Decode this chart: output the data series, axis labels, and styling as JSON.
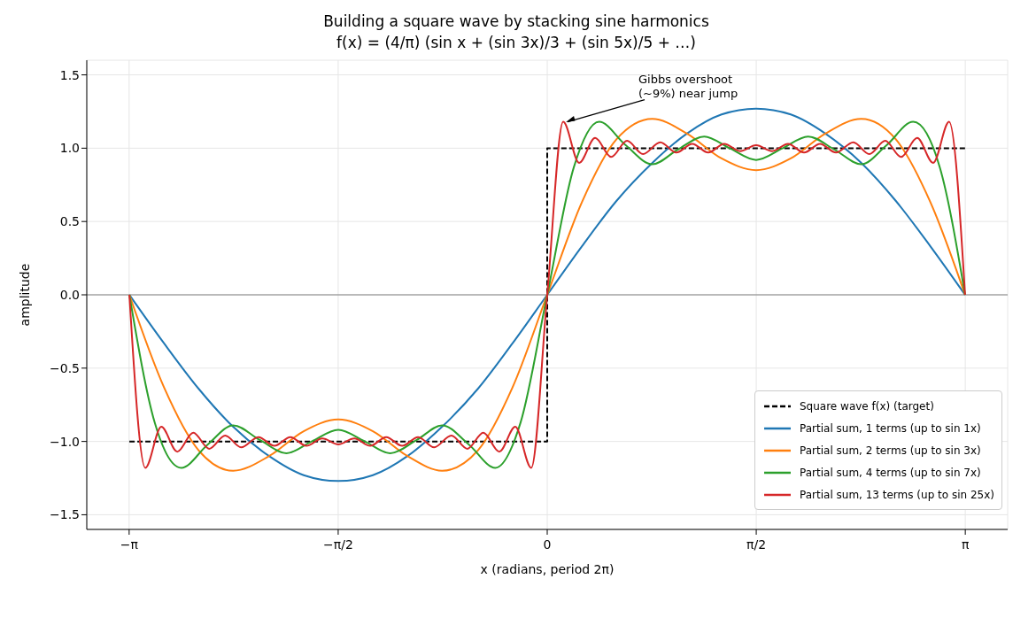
{
  "chart_data": {
    "type": "line",
    "title": "Building a square wave by stacking sine harmonics",
    "subtitle": "f(x) = (4/π) (sin x + (sin 3x)/3 + (sin 5x)/5 + …)",
    "xlabel": "x  (radians, period 2π)",
    "ylabel": "amplitude",
    "xlim": [
      -3.46,
      3.46
    ],
    "xticks": [
      {
        "value": -3.1416,
        "label": "−π"
      },
      {
        "value": -1.5708,
        "label": "−π/2"
      },
      0,
      {
        "value": 1.5708,
        "label": "π/2"
      },
      {
        "value": 3.1416,
        "label": "π"
      }
    ],
    "ylim": [
      -1.6,
      1.6
    ],
    "yticks": [
      {
        "value": -1.5,
        "label": "−1.5"
      },
      {
        "value": -1.0,
        "label": "−1.0"
      },
      {
        "value": -0.5,
        "label": "−0.5"
      },
      {
        "value": 0,
        "label": "0.0"
      },
      {
        "value": 0.5,
        "label": "0.5"
      },
      {
        "value": 1.0,
        "label": "1.0"
      },
      {
        "value": 1.5,
        "label": "1.5"
      }
    ],
    "grid": true,
    "legend": "bottom right",
    "marker": "none",
    "ref_lines": [
      {
        "axis": "y",
        "value": 0,
        "color": "#808080"
      }
    ],
    "annotations": [
      {
        "text": "Gibbs overshoot\n(~9%) near jump",
        "x": 0.12,
        "y": 1.18
      }
    ],
    "series": [
      {
        "name": "Square wave f(x) (target)",
        "color": "#000000",
        "line_style": "dashed",
        "x": [
          -3.14,
          0,
          0,
          3.14
        ],
        "values": [
          -1,
          -1,
          1,
          1
        ]
      },
      {
        "name": "Partial sum, 1 terms (up to sin 1x)",
        "color": "#1f77b4",
        "x": [
          -3.14,
          -2.88,
          -2.62,
          -2.36,
          -2.09,
          -1.83,
          -1.57,
          -1.31,
          -1.05,
          -0.79,
          -0.52,
          -0.26,
          0,
          0.26,
          0.52,
          0.79,
          1.05,
          1.31,
          1.57,
          1.83,
          2.09,
          2.36,
          2.62,
          2.88,
          3.14
        ],
        "values": [
          0,
          -0.33,
          -0.64,
          -0.9,
          -1.1,
          -1.23,
          -1.27,
          -1.23,
          -1.1,
          -0.9,
          -0.64,
          -0.33,
          0,
          0.33,
          0.64,
          0.9,
          1.1,
          1.23,
          1.27,
          1.23,
          1.1,
          0.9,
          0.64,
          0.33,
          0
        ]
      },
      {
        "name": "Partial sum, 2 terms (up to sin 3x)",
        "color": "#ff7f0e",
        "x": [
          -3.14,
          -2.88,
          -2.62,
          -2.36,
          -2.09,
          -1.83,
          -1.57,
          -1.31,
          -1.05,
          -0.79,
          -0.52,
          -0.26,
          0,
          0.26,
          0.52,
          0.79,
          1.05,
          1.31,
          1.57,
          1.83,
          2.09,
          2.36,
          2.62,
          2.88,
          3.14
        ],
        "values": [
          0,
          -0.63,
          -1.06,
          -1.2,
          -1.1,
          -0.93,
          -0.85,
          -0.93,
          -1.1,
          -1.2,
          -1.06,
          -0.63,
          0,
          0.63,
          1.06,
          1.2,
          1.1,
          0.93,
          0.85,
          0.93,
          1.1,
          1.2,
          1.06,
          0.63,
          0
        ]
      },
      {
        "name": "Partial sum, 4 terms (up to sin 7x)",
        "color": "#2ca02c",
        "x": [
          -3.14,
          -2.95,
          -2.75,
          -2.55,
          -2.36,
          -2.16,
          -1.96,
          -1.77,
          -1.57,
          -1.37,
          -1.18,
          -0.98,
          -0.79,
          -0.59,
          -0.39,
          -0.2,
          0,
          0.2,
          0.39,
          0.59,
          0.79,
          0.98,
          1.18,
          1.37,
          1.57,
          1.77,
          1.96,
          2.16,
          2.36,
          2.55,
          2.75,
          2.95,
          3.14
        ],
        "values": [
          0,
          -0.87,
          -1.18,
          -1.02,
          -0.89,
          -0.99,
          -1.08,
          -1.0,
          -0.92,
          -1.0,
          -1.08,
          -0.99,
          -0.89,
          -1.02,
          -1.18,
          -0.87,
          0,
          0.87,
          1.18,
          1.02,
          0.89,
          0.99,
          1.08,
          1.0,
          0.92,
          1.0,
          1.08,
          0.99,
          0.89,
          1.02,
          1.18,
          0.87,
          0
        ]
      },
      {
        "name": "Partial sum, 13 terms (up to sin 25x)",
        "color": "#d62728",
        "x": [
          -3.14,
          -3.02,
          -2.9,
          -2.78,
          -2.66,
          -2.54,
          -2.42,
          -2.3,
          -2.17,
          -2.05,
          -1.93,
          -1.81,
          -1.69,
          -1.57,
          -1.45,
          -1.33,
          -1.21,
          -1.09,
          -0.97,
          -0.85,
          -0.72,
          -0.6,
          -0.48,
          -0.36,
          -0.24,
          -0.12,
          0,
          0.12,
          0.24,
          0.36,
          0.48,
          0.6,
          0.72,
          0.85,
          0.97,
          1.09,
          1.21,
          1.33,
          1.45,
          1.57,
          1.69,
          1.81,
          1.93,
          2.05,
          2.17,
          2.3,
          2.42,
          2.54,
          2.66,
          2.78,
          2.9,
          3.02,
          3.14
        ],
        "values": [
          0,
          -1.18,
          -0.9,
          -1.07,
          -0.94,
          -1.05,
          -0.96,
          -1.04,
          -0.97,
          -1.03,
          -0.97,
          -1.03,
          -0.98,
          -1.02,
          -0.98,
          -1.03,
          -0.97,
          -1.03,
          -0.97,
          -1.04,
          -0.96,
          -1.05,
          -0.94,
          -1.07,
          -0.9,
          -1.18,
          0,
          1.18,
          0.9,
          1.07,
          0.94,
          1.05,
          0.96,
          1.04,
          0.97,
          1.03,
          0.97,
          1.03,
          0.98,
          1.02,
          0.98,
          1.03,
          0.97,
          1.03,
          0.97,
          1.04,
          0.96,
          1.05,
          0.94,
          1.07,
          0.9,
          1.18,
          0
        ]
      }
    ]
  }
}
